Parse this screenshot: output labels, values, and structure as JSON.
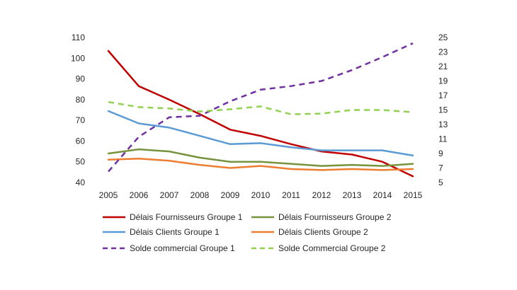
{
  "chart_data": {
    "type": "line",
    "title": "",
    "x": [
      "2005",
      "2006",
      "2007",
      "2008",
      "2009",
      "2010",
      "2011",
      "2012",
      "2013",
      "2014",
      "2015"
    ],
    "y_left": {
      "min": 40,
      "max": 110,
      "ticks": [
        40,
        50,
        60,
        70,
        80,
        90,
        100,
        110
      ]
    },
    "y_right": {
      "min": 5,
      "max": 25,
      "ticks": [
        5,
        7,
        9,
        11,
        13,
        15,
        17,
        19,
        21,
        23,
        25
      ]
    },
    "grid": false,
    "legend_position": "bottom",
    "series": [
      {
        "name": "Délais Fournisseurs Groupe 1",
        "axis": "left",
        "color": "#C00000",
        "dash": "solid",
        "values": [
          103.5,
          86.5,
          80,
          73,
          65.5,
          62.5,
          58.5,
          55,
          53.5,
          50,
          43
        ]
      },
      {
        "name": "Délais Fournisseurs Groupe 2",
        "axis": "left",
        "color": "#77933C",
        "dash": "solid",
        "values": [
          54,
          56,
          55,
          52,
          50,
          50,
          49,
          48,
          48.5,
          48,
          49
        ]
      },
      {
        "name": "Délais Clients Groupe 1",
        "axis": "left",
        "color": "#5B9BD5",
        "dash": "solid",
        "values": [
          74.5,
          68.5,
          66.5,
          62.5,
          58.5,
          59,
          57,
          55.5,
          55.5,
          55.5,
          53
        ]
      },
      {
        "name": "Délais Clients Groupe 2",
        "axis": "left",
        "color": "#ED7D31",
        "dash": "solid",
        "values": [
          51,
          51.5,
          50.5,
          48.5,
          47,
          48,
          46.5,
          46,
          46.5,
          46,
          46.5
        ]
      },
      {
        "name": "Solde commercial Groupe 1",
        "axis": "right",
        "color": "#7030A0",
        "dash": "dash",
        "values": [
          6.5,
          11.3,
          14,
          14.2,
          16.2,
          17.8,
          18.3,
          19,
          20.5,
          22.3,
          24.2
        ]
      },
      {
        "name": "Solde Commercial Groupe 2",
        "axis": "right",
        "color": "#92D050",
        "dash": "dash",
        "values": [
          16.1,
          15.4,
          15.2,
          14.8,
          15.1,
          15.5,
          14.4,
          14.5,
          15,
          15,
          14.7
        ]
      }
    ]
  }
}
